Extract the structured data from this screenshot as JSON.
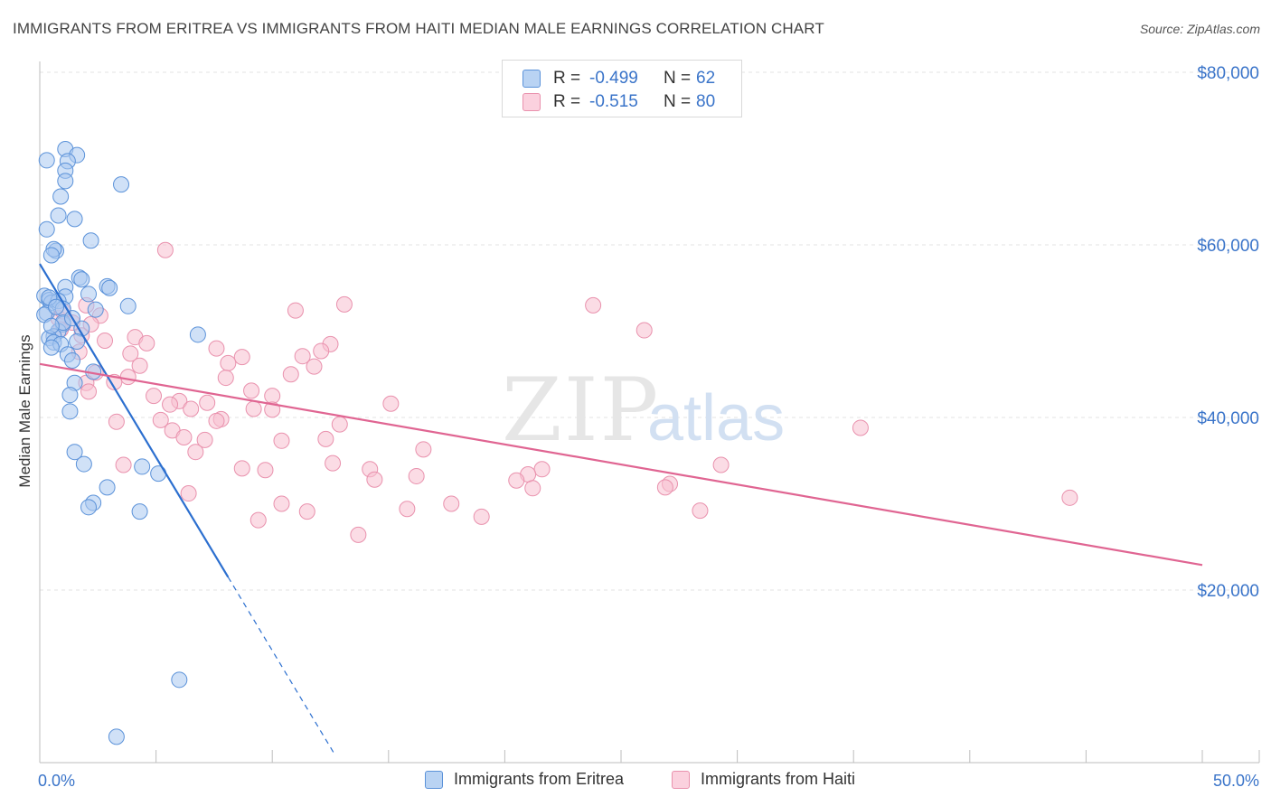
{
  "header": {
    "title": "IMMIGRANTS FROM ERITREA VS IMMIGRANTS FROM HAITI MEDIAN MALE EARNINGS CORRELATION CHART",
    "source": "Source: ZipAtlas.com"
  },
  "watermark": {
    "zip": "ZIP",
    "atlas": "atlas"
  },
  "legend_top": {
    "rows": [
      {
        "r_label": "R =",
        "r_value": "-0.499",
        "n_label": "N =",
        "n_value": "62"
      },
      {
        "r_label": "R =",
        "r_value": "-0.515",
        "n_label": "N =",
        "n_value": "80"
      }
    ]
  },
  "legend_bottom": {
    "items": [
      {
        "label": "Immigrants from Eritrea"
      },
      {
        "label": "Immigrants from Haiti"
      }
    ]
  },
  "colors": {
    "eritrea_fill": "#a9c8f0",
    "eritrea_stroke": "#5b92d9",
    "eritrea_line": "#2c6fcf",
    "haiti_fill": "#f7c0d0",
    "haiti_stroke": "#e991ad",
    "haiti_line": "#e06592",
    "axis_text": "#3a74c9",
    "grid": "#e3e3e3"
  },
  "chart_data": {
    "type": "scatter",
    "title": "IMMIGRANTS FROM ERITREA VS IMMIGRANTS FROM HAITI MEDIAN MALE EARNINGS CORRELATION CHART",
    "xlabel": "",
    "ylabel": "Median Male Earnings",
    "xlim": [
      0,
      50
    ],
    "ylim": [
      0,
      80000
    ],
    "x_tick_labels": [
      "0.0%",
      "50.0%"
    ],
    "y_ticks": [
      20000,
      40000,
      60000,
      80000
    ],
    "y_tick_labels": [
      "$20,000",
      "$40,000",
      "$60,000",
      "$80,000"
    ],
    "series": [
      {
        "name": "Immigrants from Eritrea",
        "r": -0.499,
        "n": 62,
        "trend": {
          "x0": 0,
          "y0": 57800,
          "x1": 8.1,
          "y1": 21500,
          "dash_x1": 12.7
        },
        "points": [
          [
            0.3,
            69800
          ],
          [
            1.1,
            71100
          ],
          [
            1.6,
            70400
          ],
          [
            1.2,
            69700
          ],
          [
            1.1,
            68600
          ],
          [
            1.1,
            67400
          ],
          [
            3.5,
            67000
          ],
          [
            0.9,
            65600
          ],
          [
            0.8,
            63400
          ],
          [
            1.5,
            63000
          ],
          [
            0.3,
            61800
          ],
          [
            2.2,
            60500
          ],
          [
            0.7,
            59300
          ],
          [
            0.6,
            59500
          ],
          [
            0.5,
            58800
          ],
          [
            1.7,
            56200
          ],
          [
            1.8,
            56000
          ],
          [
            1.1,
            55100
          ],
          [
            2.9,
            55200
          ],
          [
            3.0,
            55000
          ],
          [
            2.1,
            54300
          ],
          [
            0.2,
            54100
          ],
          [
            0.4,
            53600
          ],
          [
            0.5,
            53300
          ],
          [
            1.1,
            54000
          ],
          [
            0.8,
            53500
          ],
          [
            3.8,
            52900
          ],
          [
            1.0,
            52600
          ],
          [
            2.4,
            52500
          ],
          [
            0.3,
            52100
          ],
          [
            0.2,
            51900
          ],
          [
            1.0,
            50800
          ],
          [
            1.8,
            50300
          ],
          [
            0.8,
            50000
          ],
          [
            0.6,
            49400
          ],
          [
            6.8,
            49600
          ],
          [
            0.4,
            49200
          ],
          [
            0.6,
            48700
          ],
          [
            0.9,
            48500
          ],
          [
            0.5,
            48100
          ],
          [
            1.2,
            47300
          ],
          [
            1.4,
            46600
          ],
          [
            2.3,
            45300
          ],
          [
            1.5,
            44000
          ],
          [
            1.3,
            42600
          ],
          [
            1.3,
            40700
          ],
          [
            1.5,
            36000
          ],
          [
            1.9,
            34600
          ],
          [
            4.4,
            34300
          ],
          [
            5.1,
            33500
          ],
          [
            2.9,
            31900
          ],
          [
            2.3,
            30100
          ],
          [
            2.1,
            29600
          ],
          [
            4.3,
            29100
          ],
          [
            6.0,
            9600
          ],
          [
            3.3,
            3000
          ],
          [
            0.4,
            53900
          ],
          [
            1.0,
            51000
          ],
          [
            1.4,
            51500
          ],
          [
            0.7,
            52800
          ],
          [
            1.6,
            48800
          ],
          [
            0.5,
            50600
          ]
        ]
      },
      {
        "name": "Immigrants from Haiti",
        "r": -0.515,
        "n": 80,
        "trend": {
          "x0": 0,
          "y0": 46200,
          "x1": 50,
          "y1": 22900
        },
        "points": [
          [
            5.4,
            59400
          ],
          [
            13.1,
            53100
          ],
          [
            23.8,
            53000
          ],
          [
            11.0,
            52400
          ],
          [
            2.6,
            51800
          ],
          [
            0.8,
            51500
          ],
          [
            1.4,
            51000
          ],
          [
            0.9,
            50200
          ],
          [
            26.0,
            50100
          ],
          [
            1.8,
            49500
          ],
          [
            4.1,
            49300
          ],
          [
            2.8,
            48900
          ],
          [
            4.6,
            48600
          ],
          [
            12.5,
            48500
          ],
          [
            7.6,
            48000
          ],
          [
            12.1,
            47700
          ],
          [
            1.7,
            47600
          ],
          [
            3.9,
            47400
          ],
          [
            8.7,
            47000
          ],
          [
            11.3,
            47100
          ],
          [
            8.1,
            46300
          ],
          [
            4.3,
            46000
          ],
          [
            11.8,
            45900
          ],
          [
            2.4,
            45200
          ],
          [
            3.8,
            44700
          ],
          [
            10.8,
            45000
          ],
          [
            2.0,
            44000
          ],
          [
            3.2,
            44100
          ],
          [
            8.0,
            44600
          ],
          [
            9.1,
            43100
          ],
          [
            2.1,
            43000
          ],
          [
            10.0,
            42500
          ],
          [
            4.9,
            42500
          ],
          [
            6.0,
            41900
          ],
          [
            7.2,
            41700
          ],
          [
            15.1,
            41600
          ],
          [
            5.6,
            41500
          ],
          [
            9.2,
            41000
          ],
          [
            6.5,
            41000
          ],
          [
            10.0,
            40900
          ],
          [
            5.2,
            39700
          ],
          [
            3.3,
            39500
          ],
          [
            7.8,
            39800
          ],
          [
            7.6,
            39600
          ],
          [
            12.9,
            39200
          ],
          [
            35.3,
            38800
          ],
          [
            5.7,
            38500
          ],
          [
            6.2,
            37700
          ],
          [
            7.1,
            37400
          ],
          [
            10.4,
            37300
          ],
          [
            12.3,
            37500
          ],
          [
            16.5,
            36300
          ],
          [
            6.7,
            36000
          ],
          [
            3.6,
            34500
          ],
          [
            12.6,
            34700
          ],
          [
            8.7,
            34100
          ],
          [
            9.7,
            33900
          ],
          [
            14.2,
            34000
          ],
          [
            21.6,
            34000
          ],
          [
            21.0,
            33400
          ],
          [
            16.2,
            33200
          ],
          [
            29.3,
            34500
          ],
          [
            20.5,
            32700
          ],
          [
            14.4,
            32800
          ],
          [
            27.1,
            32300
          ],
          [
            21.2,
            31800
          ],
          [
            26.9,
            31900
          ],
          [
            6.4,
            31200
          ],
          [
            10.4,
            30000
          ],
          [
            17.7,
            30000
          ],
          [
            44.3,
            30700
          ],
          [
            15.8,
            29400
          ],
          [
            11.5,
            29100
          ],
          [
            28.4,
            29200
          ],
          [
            19.0,
            28500
          ],
          [
            9.4,
            28100
          ],
          [
            13.7,
            26400
          ],
          [
            2.0,
            53000
          ],
          [
            1.0,
            52300
          ],
          [
            2.2,
            50800
          ]
        ]
      }
    ]
  }
}
